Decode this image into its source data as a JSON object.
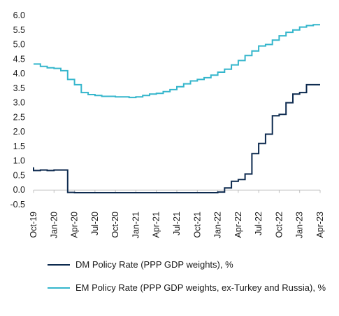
{
  "chart_data": {
    "type": "line",
    "title": "",
    "xlabel": "",
    "ylabel": "",
    "ylim": [
      -0.5,
      6.0
    ],
    "yticks": [
      "6.0",
      "5.5",
      "5.0",
      "4.5",
      "4.0",
      "3.5",
      "3.0",
      "2.5",
      "2.0",
      "1.5",
      "1.0",
      "0.5",
      "0.0",
      "-0.5"
    ],
    "xticks": [
      "Oct-19",
      "Jan-20",
      "Apr-20",
      "Jul-20",
      "Oct-20",
      "Jan-21",
      "Apr-21",
      "Jul-21",
      "Oct-21",
      "Jan-22",
      "Apr-22",
      "Jul-22",
      "Oct-22",
      "Jan-23",
      "Apr-23"
    ],
    "grid": false,
    "legend_position": "bottom",
    "series": [
      {
        "name": "DM Policy Rate (PPP GDP weights), %",
        "color": "#0d2a4f",
        "step": true,
        "points": [
          [
            "Oct-19",
            0.78
          ],
          [
            "Oct-19",
            0.67
          ],
          [
            "Nov-19",
            0.67
          ],
          [
            "Nov-19",
            0.69
          ],
          [
            "Dec-19",
            0.69
          ],
          [
            "Dec-19",
            0.67
          ],
          [
            "Jan-20",
            0.69
          ],
          [
            "Feb-20",
            0.69
          ],
          [
            "Mar-20",
            0.45
          ],
          [
            "Mar-20",
            0.08
          ],
          [
            "Mar-20",
            -0.08
          ],
          [
            "Apr-20",
            -0.09
          ],
          [
            "Jan-21",
            -0.09
          ],
          [
            "Jan-22",
            -0.09
          ],
          [
            "Jan-22",
            -0.07
          ],
          [
            "Feb-22",
            -0.07
          ],
          [
            "Feb-22",
            0.07
          ],
          [
            "Mar-22",
            0.07
          ],
          [
            "Mar-22",
            0.3
          ],
          [
            "Apr-22",
            0.3
          ],
          [
            "Apr-22",
            0.36
          ],
          [
            "May-22",
            0.36
          ],
          [
            "May-22",
            0.55
          ],
          [
            "Jun-22",
            0.55
          ],
          [
            "Jun-22",
            0.92
          ],
          [
            "Jun-22",
            1.25
          ],
          [
            "Jul-22",
            1.25
          ],
          [
            "Jul-22",
            1.3
          ],
          [
            "Jul-22",
            1.6
          ],
          [
            "Aug-22",
            1.6
          ],
          [
            "Aug-22",
            1.92
          ],
          [
            "Sep-22",
            1.92
          ],
          [
            "Sep-22",
            1.95
          ],
          [
            "Sep-22",
            2.25
          ],
          [
            "Sep-22",
            2.55
          ],
          [
            "Oct-22",
            2.55
          ],
          [
            "Oct-22",
            2.6
          ],
          [
            "Nov-22",
            2.6
          ],
          [
            "Nov-22",
            3.0
          ],
          [
            "Dec-22",
            3.0
          ],
          [
            "Dec-22",
            3.3
          ],
          [
            "Jan-23",
            3.3
          ],
          [
            "Jan-23",
            3.35
          ],
          [
            "Feb-23",
            3.35
          ],
          [
            "Feb-23",
            3.62
          ],
          [
            "Mar-23",
            3.62
          ],
          [
            "Apr-23",
            3.62
          ]
        ]
      },
      {
        "name": "EM Policy Rate (PPP GDP weights, ex-Turkey and Russia), %",
        "color": "#35b6cc",
        "step": true,
        "points": [
          [
            "Oct-19",
            4.33
          ],
          [
            "Nov-19",
            4.25
          ],
          [
            "Dec-19",
            4.2
          ],
          [
            "Jan-20",
            4.18
          ],
          [
            "Feb-20",
            4.1
          ],
          [
            "Mar-20",
            3.95
          ],
          [
            "Mar-20",
            3.8
          ],
          [
            "Apr-20",
            3.62
          ],
          [
            "May-20",
            3.35
          ],
          [
            "Jun-20",
            3.28
          ],
          [
            "Jul-20",
            3.25
          ],
          [
            "Aug-20",
            3.22
          ],
          [
            "Sep-20",
            3.22
          ],
          [
            "Oct-20",
            3.2
          ],
          [
            "Nov-20",
            3.2
          ],
          [
            "Dec-20",
            3.18
          ],
          [
            "Jan-21",
            3.2
          ],
          [
            "Feb-21",
            3.25
          ],
          [
            "Mar-21",
            3.3
          ],
          [
            "Apr-21",
            3.32
          ],
          [
            "May-21",
            3.38
          ],
          [
            "Jun-21",
            3.45
          ],
          [
            "Jul-21",
            3.55
          ],
          [
            "Aug-21",
            3.65
          ],
          [
            "Sep-21",
            3.75
          ],
          [
            "Oct-21",
            3.8
          ],
          [
            "Nov-21",
            3.86
          ],
          [
            "Dec-21",
            3.95
          ],
          [
            "Jan-22",
            4.05
          ],
          [
            "Feb-22",
            4.15
          ],
          [
            "Mar-22",
            4.3
          ],
          [
            "Apr-22",
            4.45
          ],
          [
            "May-22",
            4.62
          ],
          [
            "Jun-22",
            4.78
          ],
          [
            "Jul-22",
            4.95
          ],
          [
            "Aug-22",
            5.0
          ],
          [
            "Sep-22",
            5.15
          ],
          [
            "Oct-22",
            5.3
          ],
          [
            "Nov-22",
            5.42
          ],
          [
            "Dec-22",
            5.5
          ],
          [
            "Jan-23",
            5.6
          ],
          [
            "Feb-23",
            5.65
          ],
          [
            "Mar-23",
            5.68
          ],
          [
            "Apr-23",
            5.68
          ]
        ]
      }
    ]
  }
}
